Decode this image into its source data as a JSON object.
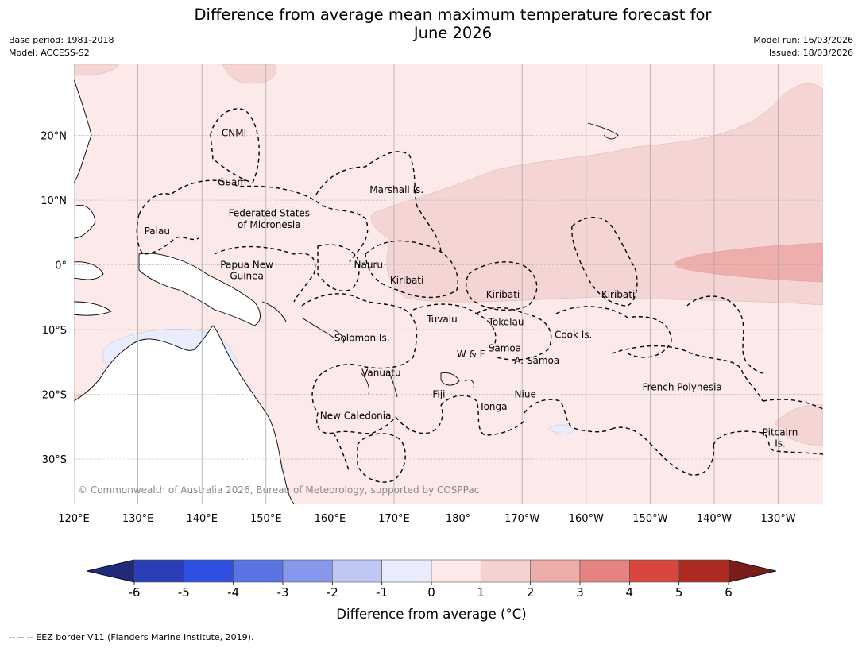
{
  "header": {
    "title_line1": "Difference from average mean maximum temperature forecast for",
    "title_line2": "June 2026",
    "base_period": "Base period: 1981-2018",
    "model": "Model: ACCESS-S2",
    "model_run": "Model run: 16/03/2026",
    "issued": "Issued: 18/03/2026"
  },
  "map": {
    "lat_labels": [
      "20°N",
      "10°N",
      "0°",
      "10°S",
      "20°S",
      "30°S"
    ],
    "lat_values": [
      20,
      10,
      0,
      -10,
      -20,
      -30
    ],
    "lon_labels": [
      "120°E",
      "130°E",
      "140°E",
      "150°E",
      "160°E",
      "170°E",
      "180°",
      "170°W",
      "160°W",
      "150°W",
      "140°W",
      "130°W"
    ],
    "lon_values": [
      120,
      130,
      140,
      150,
      160,
      170,
      180,
      190,
      200,
      210,
      220,
      230
    ],
    "places": [
      {
        "name": "CNMI",
        "lon": 145.0,
        "lat": 20.4
      },
      {
        "name": "Guam",
        "lon": 144.7,
        "lat": 12.8
      },
      {
        "name": "Marshall Is.",
        "lon": 170.4,
        "lat": 11.6
      },
      {
        "name": "Federated States",
        "lon": 150.5,
        "lat": 8.0
      },
      {
        "name": "of Micronesia",
        "lon": 150.5,
        "lat": 6.2
      },
      {
        "name": "Palau",
        "lon": 133.0,
        "lat": 5.2
      },
      {
        "name": "Papua New",
        "lon": 147.0,
        "lat": 0.0
      },
      {
        "name": "Guinea",
        "lon": 147.0,
        "lat": -1.7
      },
      {
        "name": "Nauru",
        "lon": 166.0,
        "lat": 0.0
      },
      {
        "name": "Kiribati",
        "lon": 172.0,
        "lat": -2.4
      },
      {
        "name": "Kiribati",
        "lon": 187.0,
        "lat": -4.6
      },
      {
        "name": "Kiribati",
        "lon": 205.0,
        "lat": -4.6
      },
      {
        "name": "Tuvalu",
        "lon": 177.5,
        "lat": -8.4
      },
      {
        "name": "Tokelau",
        "lon": 187.5,
        "lat": -8.8
      },
      {
        "name": "Cook Is.",
        "lon": 198.0,
        "lat": -10.8
      },
      {
        "name": "Solomon Is.",
        "lon": 165.0,
        "lat": -11.3
      },
      {
        "name": "Samoa",
        "lon": 187.3,
        "lat": -12.9
      },
      {
        "name": "W & F",
        "lon": 182.0,
        "lat": -13.8
      },
      {
        "name": "A. Samoa",
        "lon": 192.3,
        "lat": -14.8
      },
      {
        "name": "Vanuatu",
        "lon": 168.0,
        "lat": -16.7
      },
      {
        "name": "Fiji",
        "lon": 177.0,
        "lat": -20.0
      },
      {
        "name": "Niue",
        "lon": 190.5,
        "lat": -20.0
      },
      {
        "name": "French Polynesia",
        "lon": 215.0,
        "lat": -18.9
      },
      {
        "name": "Tonga",
        "lon": 185.5,
        "lat": -21.9
      },
      {
        "name": "New Caledonia",
        "lon": 164.0,
        "lat": -23.3
      },
      {
        "name": "Pitcairn",
        "lon": 230.3,
        "lat": -25.9
      },
      {
        "name": "Is.",
        "lon": 230.3,
        "lat": -27.6
      }
    ],
    "copyright": "© Commonwealth of Australia 2026, Bureau of Meteorology, supported by COSPPac"
  },
  "colorbar": {
    "ticks": [
      "-6",
      "-5",
      "-4",
      "-3",
      "-2",
      "-1",
      "0",
      "1",
      "2",
      "3",
      "4",
      "5",
      "6"
    ],
    "colors": [
      "#2a3fb5",
      "#2f4fe0",
      "#5a74e4",
      "#8797ec",
      "#bfc7f5",
      "#e8ecfc",
      "#fbeae9",
      "#f5d2d1",
      "#ecacaa",
      "#e48380",
      "#d8473e",
      "#ad2a23"
    ],
    "under_color": "#1f2a7a",
    "over_color": "#7a1c17",
    "title": "Difference from average (°C)"
  },
  "colors": {
    "anomaly_0_1": "#fbeae9",
    "anomaly_1_2": "#f5d5d3",
    "anomaly_2_3": "#eeaeab",
    "anomaly_neg1_0": "#e8ecfb",
    "land": "#ffffff"
  },
  "footnote": "--  --  -- EEZ border V11 (Flanders Marine Institute, 2019)."
}
